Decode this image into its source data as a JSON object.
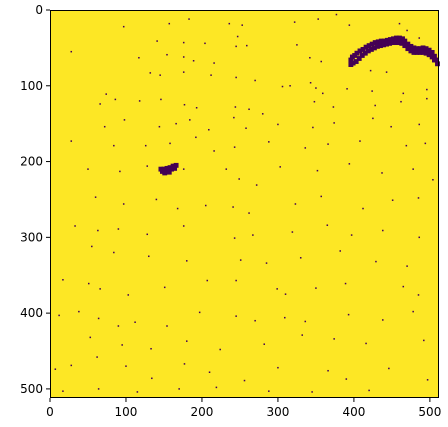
{
  "chart_data": {
    "type": "heatmap",
    "title": "",
    "xlabel": "",
    "ylabel": "",
    "xlim": [
      0,
      512
    ],
    "ylim": [
      512,
      0
    ],
    "x_ticks": [
      0,
      100,
      200,
      300,
      400,
      500
    ],
    "y_ticks": [
      0,
      100,
      200,
      300,
      400,
      500
    ],
    "x_tick_labels": [
      "0",
      "100",
      "200",
      "300",
      "400",
      "500"
    ],
    "y_tick_labels": [
      "0",
      "100",
      "200",
      "300",
      "400",
      "500"
    ],
    "grid": false,
    "colormap": "viridis",
    "binary_values": [
      0,
      1
    ],
    "background_color": "#fde725",
    "marker_color": "#440154",
    "legend": false,
    "large_regions": [
      {
        "name": "arc-top-right",
        "points": [
          [
            396,
            72
          ],
          [
            396,
            66
          ],
          [
            398,
            62
          ],
          [
            401,
            60
          ],
          [
            404,
            57
          ],
          [
            408,
            54
          ],
          [
            412,
            52
          ],
          [
            416,
            49
          ],
          [
            420,
            47
          ],
          [
            424,
            45
          ],
          [
            428,
            43
          ],
          [
            432,
            42
          ],
          [
            436,
            41
          ],
          [
            440,
            41
          ],
          [
            444,
            40
          ],
          [
            448,
            39
          ],
          [
            452,
            38
          ],
          [
            456,
            37
          ],
          [
            460,
            37
          ],
          [
            464,
            38
          ],
          [
            467,
            41
          ],
          [
            471,
            45
          ],
          [
            475,
            48
          ],
          [
            479,
            50
          ],
          [
            483,
            51
          ],
          [
            487,
            51
          ],
          [
            491,
            50
          ],
          [
            495,
            51
          ],
          [
            499,
            53
          ],
          [
            503,
            56
          ],
          [
            506,
            61
          ],
          [
            508,
            66
          ],
          [
            510,
            71
          ],
          [
            399,
            70
          ],
          [
            403,
            68
          ],
          [
            407,
            64
          ],
          [
            411,
            60
          ],
          [
            415,
            57
          ],
          [
            419,
            54
          ],
          [
            423,
            52
          ],
          [
            427,
            50
          ],
          [
            431,
            48
          ],
          [
            435,
            47
          ],
          [
            439,
            46
          ],
          [
            443,
            45
          ],
          [
            447,
            44
          ],
          [
            451,
            43
          ],
          [
            455,
            43
          ],
          [
            459,
            43
          ],
          [
            463,
            44
          ],
          [
            467,
            47
          ],
          [
            471,
            51
          ],
          [
            475,
            54
          ],
          [
            479,
            56
          ],
          [
            483,
            56
          ],
          [
            487,
            56
          ],
          [
            491,
            56
          ],
          [
            495,
            57
          ],
          [
            499,
            59
          ],
          [
            503,
            62
          ],
          [
            506,
            66
          ]
        ]
      },
      {
        "name": "blob-center-left",
        "points": [
          [
            146,
            210
          ],
          [
            150,
            210
          ],
          [
            154,
            209
          ],
          [
            158,
            208
          ],
          [
            162,
            206
          ],
          [
            166,
            205
          ],
          [
            148,
            213
          ],
          [
            152,
            212
          ],
          [
            156,
            211
          ],
          [
            160,
            210
          ],
          [
            164,
            209
          ],
          [
            151,
            215
          ],
          [
            157,
            214
          ]
        ]
      }
    ],
    "sparse_points": [
      [
        97,
        22
      ],
      [
        157,
        18
      ],
      [
        183,
        12
      ],
      [
        236,
        18
      ],
      [
        247,
        35
      ],
      [
        253,
        20
      ],
      [
        322,
        16
      ],
      [
        353,
        12
      ],
      [
        377,
        6
      ],
      [
        394,
        20
      ],
      [
        460,
        18
      ],
      [
        470,
        27
      ],
      [
        486,
        37
      ],
      [
        141,
        41
      ],
      [
        176,
        43
      ],
      [
        204,
        44
      ],
      [
        245,
        48
      ],
      [
        259,
        47
      ],
      [
        325,
        46
      ],
      [
        342,
        63
      ],
      [
        28,
        55
      ],
      [
        117,
        63
      ],
      [
        154,
        59
      ],
      [
        176,
        62
      ],
      [
        189,
        67
      ],
      [
        216,
        70
      ],
      [
        357,
        68
      ],
      [
        422,
        80
      ],
      [
        443,
        82
      ],
      [
        132,
        83
      ],
      [
        145,
        86
      ],
      [
        176,
        82
      ],
      [
        212,
        86
      ],
      [
        245,
        89
      ],
      [
        270,
        93
      ],
      [
        306,
        101
      ],
      [
        316,
        100
      ],
      [
        343,
        96
      ],
      [
        350,
        103
      ],
      [
        359,
        110
      ],
      [
        391,
        104
      ],
      [
        424,
        107
      ],
      [
        465,
        110
      ],
      [
        496,
        105
      ],
      [
        74,
        111
      ],
      [
        66,
        124
      ],
      [
        86,
        118
      ],
      [
        118,
        120
      ],
      [
        146,
        118
      ],
      [
        177,
        125
      ],
      [
        193,
        129
      ],
      [
        244,
        128
      ],
      [
        262,
        131
      ],
      [
        280,
        137
      ],
      [
        348,
        121
      ],
      [
        373,
        128
      ],
      [
        428,
        126
      ],
      [
        462,
        121
      ],
      [
        496,
        117
      ],
      [
        72,
        154
      ],
      [
        98,
        145
      ],
      [
        144,
        154
      ],
      [
        166,
        150
      ],
      [
        184,
        145
      ],
      [
        209,
        158
      ],
      [
        242,
        142
      ],
      [
        258,
        156
      ],
      [
        300,
        151
      ],
      [
        346,
        155
      ],
      [
        374,
        149
      ],
      [
        425,
        143
      ],
      [
        449,
        154
      ],
      [
        486,
        151
      ],
      [
        28,
        173
      ],
      [
        84,
        179
      ],
      [
        126,
        179
      ],
      [
        158,
        176
      ],
      [
        192,
        168
      ],
      [
        216,
        186
      ],
      [
        243,
        181
      ],
      [
        288,
        174
      ],
      [
        336,
        182
      ],
      [
        366,
        177
      ],
      [
        408,
        173
      ],
      [
        469,
        179
      ],
      [
        494,
        176
      ],
      [
        50,
        210
      ],
      [
        92,
        213
      ],
      [
        128,
        206
      ],
      [
        176,
        210
      ],
      [
        232,
        210
      ],
      [
        249,
        223
      ],
      [
        272,
        231
      ],
      [
        303,
        207
      ],
      [
        352,
        212
      ],
      [
        394,
        203
      ],
      [
        437,
        215
      ],
      [
        478,
        210
      ],
      [
        504,
        224
      ],
      [
        60,
        247
      ],
      [
        97,
        256
      ],
      [
        140,
        250
      ],
      [
        168,
        262
      ],
      [
        205,
        258
      ],
      [
        241,
        260
      ],
      [
        262,
        268
      ],
      [
        323,
        256
      ],
      [
        357,
        246
      ],
      [
        412,
        262
      ],
      [
        451,
        251
      ],
      [
        485,
        248
      ],
      [
        33,
        285
      ],
      [
        63,
        291
      ],
      [
        90,
        289
      ],
      [
        128,
        296
      ],
      [
        176,
        285
      ],
      [
        243,
        301
      ],
      [
        267,
        297
      ],
      [
        319,
        293
      ],
      [
        365,
        284
      ],
      [
        397,
        297
      ],
      [
        438,
        291
      ],
      [
        486,
        300
      ],
      [
        55,
        312
      ],
      [
        84,
        320
      ],
      [
        130,
        325
      ],
      [
        180,
        331
      ],
      [
        251,
        330
      ],
      [
        285,
        334
      ],
      [
        330,
        327
      ],
      [
        382,
        318
      ],
      [
        429,
        332
      ],
      [
        470,
        338
      ],
      [
        17,
        356
      ],
      [
        51,
        361
      ],
      [
        66,
        368
      ],
      [
        103,
        376
      ],
      [
        151,
        366
      ],
      [
        207,
        357
      ],
      [
        245,
        357
      ],
      [
        299,
        368
      ],
      [
        310,
        375
      ],
      [
        350,
        367
      ],
      [
        389,
        361
      ],
      [
        465,
        365
      ],
      [
        485,
        376
      ],
      [
        12,
        403
      ],
      [
        38,
        398
      ],
      [
        64,
        407
      ],
      [
        90,
        417
      ],
      [
        112,
        412
      ],
      [
        154,
        417
      ],
      [
        197,
        399
      ],
      [
        245,
        404
      ],
      [
        270,
        410
      ],
      [
        309,
        406
      ],
      [
        336,
        411
      ],
      [
        393,
        402
      ],
      [
        438,
        409
      ],
      [
        478,
        398
      ],
      [
        53,
        432
      ],
      [
        95,
        442
      ],
      [
        133,
        447
      ],
      [
        180,
        437
      ],
      [
        224,
        448
      ],
      [
        282,
        441
      ],
      [
        332,
        429
      ],
      [
        374,
        434
      ],
      [
        416,
        440
      ],
      [
        492,
        436
      ],
      [
        7,
        474
      ],
      [
        28,
        469
      ],
      [
        62,
        458
      ],
      [
        100,
        470
      ],
      [
        134,
        486
      ],
      [
        177,
        467
      ],
      [
        210,
        478
      ],
      [
        256,
        489
      ],
      [
        300,
        472
      ],
      [
        366,
        476
      ],
      [
        390,
        487
      ],
      [
        446,
        473
      ],
      [
        497,
        488
      ],
      [
        17,
        503
      ],
      [
        64,
        500
      ],
      [
        115,
        504
      ],
      [
        170,
        500
      ],
      [
        219,
        498
      ],
      [
        288,
        503
      ],
      [
        345,
        504
      ],
      [
        420,
        502
      ]
    ]
  }
}
